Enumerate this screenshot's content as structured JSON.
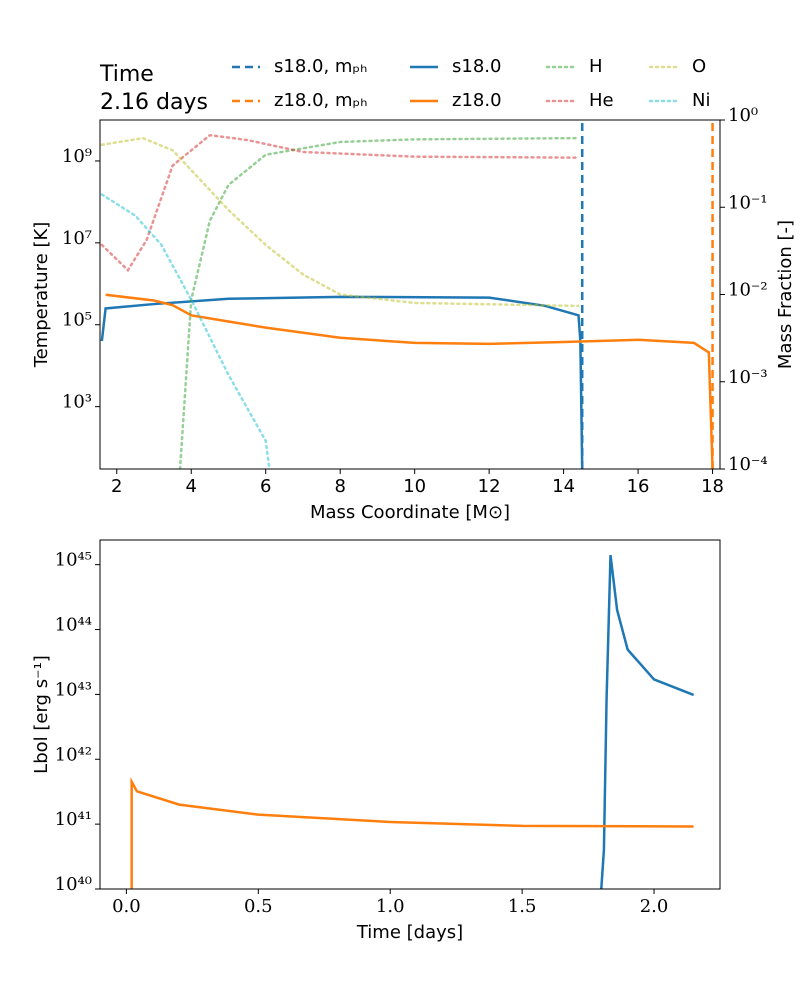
{
  "chart_data": [
    {
      "type": "line",
      "annotations": [
        "Time",
        "2.16 days"
      ],
      "xlabel": "Mass Coordinate [M⊙]",
      "ylabel": "Temperature [K]",
      "y2label": "Mass Fraction [-]",
      "xlim": [
        1.55,
        18.2
      ],
      "xticks": [
        2,
        4,
        6,
        8,
        10,
        12,
        14,
        16,
        18
      ],
      "ylim": [
        30,
        10000000000
      ],
      "ylog": true,
      "yticks": [
        {
          "value": 1000,
          "label": "10³"
        },
        {
          "value": 100000,
          "label": "10⁵"
        },
        {
          "value": 10000000,
          "label": "10⁷"
        },
        {
          "value": 1000000000,
          "label": "10⁹"
        }
      ],
      "y2lim": [
        0.0001,
        1
      ],
      "y2log": true,
      "y2ticks": [
        {
          "value": 0.0001,
          "label": "10⁻⁴"
        },
        {
          "value": 0.001,
          "label": "10⁻³"
        },
        {
          "value": 0.01,
          "label": "10⁻²"
        },
        {
          "value": 0.1,
          "label": "10⁻¹"
        },
        {
          "value": 1,
          "label": "10⁰"
        }
      ],
      "legend": true,
      "series": [
        {
          "name": "s18.0, mₚₕ",
          "color": "#1f77b4",
          "linestyle": "dashed",
          "x": [
            14.5,
            14.5
          ],
          "values": [
            30,
            10000000000
          ]
        },
        {
          "name": "z18.0, mₚₕ",
          "color": "#ff7f0e",
          "linestyle": "dashed",
          "x": [
            18.0,
            18.0
          ],
          "values": [
            30,
            10000000000
          ]
        },
        {
          "name": "s18.0",
          "color": "#1f77b4",
          "linestyle": "solid",
          "x": [
            1.6,
            1.7,
            3,
            5,
            8,
            12,
            13.5,
            14.4,
            14.45,
            14.5
          ],
          "values": [
            40000,
            250000,
            320000,
            430000,
            480000,
            460000,
            290000,
            170000,
            40000,
            30
          ]
        },
        {
          "name": "z18.0",
          "color": "#ff7f0e",
          "linestyle": "solid",
          "x": [
            1.7,
            3,
            3.5,
            4,
            5,
            6,
            8,
            10,
            12,
            14,
            16,
            17.5,
            17.9,
            18.0
          ],
          "values": [
            540000,
            390000,
            300000,
            170000,
            120000,
            85000,
            48000,
            36000,
            34000,
            38000,
            43000,
            36000,
            21000,
            30
          ]
        },
        {
          "name": "H",
          "color": "#2ca02c",
          "linestyle": "dotted",
          "axis": "y2",
          "x": [
            3.7,
            4,
            4.5,
            5,
            6,
            8,
            10,
            14.4
          ],
          "values": [
            0.0001,
            0.0087,
            0.07,
            0.18,
            0.4,
            0.56,
            0.6,
            0.62
          ]
        },
        {
          "name": "He",
          "color": "#d62728",
          "linestyle": "dotted",
          "axis": "y2",
          "x": [
            1.6,
            2.3,
            2.8,
            3.5,
            4.5,
            5.5,
            7,
            10,
            14.4
          ],
          "values": [
            0.037,
            0.019,
            0.042,
            0.3,
            0.67,
            0.59,
            0.43,
            0.38,
            0.37
          ]
        },
        {
          "name": "O",
          "color": "#bcbd22",
          "linestyle": "dotted",
          "axis": "y2",
          "x": [
            1.6,
            2.7,
            3.5,
            5,
            6,
            7,
            8,
            10,
            14.4
          ],
          "values": [
            0.52,
            0.62,
            0.45,
            0.093,
            0.037,
            0.017,
            0.01,
            0.008,
            0.0074
          ]
        },
        {
          "name": "Ni",
          "color": "#17becf",
          "linestyle": "dotted",
          "axis": "y2",
          "x": [
            1.6,
            2.5,
            3.2,
            4,
            5,
            6,
            6.1
          ],
          "values": [
            0.14,
            0.08,
            0.037,
            0.0087,
            0.0012,
            0.00021,
            0.0001
          ]
        }
      ]
    },
    {
      "type": "line",
      "xlabel": "Time [days]",
      "ylabel": "Lbol [erg s⁻¹]",
      "xlim": [
        -0.1,
        2.25
      ],
      "xticks": [
        {
          "value": 0,
          "label": "0.0"
        },
        {
          "value": 0.5,
          "label": "0.5"
        },
        {
          "value": 1,
          "label": "1.0"
        },
        {
          "value": 1.5,
          "label": "1.5"
        },
        {
          "value": 2,
          "label": "2.0"
        }
      ],
      "ylim": [
        1e+40,
        2.4e+45
      ],
      "ylog": true,
      "yticks": [
        {
          "value": 1e+40,
          "label": "10⁴⁰"
        },
        {
          "value": 1e+41,
          "label": "10⁴¹"
        },
        {
          "value": 1e+42,
          "label": "10⁴²"
        },
        {
          "value": 1e+43,
          "label": "10⁴³"
        },
        {
          "value": 1e+44,
          "label": "10⁴⁴"
        },
        {
          "value": 1e+45,
          "label": "10⁴⁵"
        }
      ],
      "series": [
        {
          "color": "#1f77b4",
          "linestyle": "solid",
          "x": [
            1.8,
            1.81,
            1.82,
            1.835,
            1.86,
            1.9,
            2.0,
            2.15
          ],
          "values": [
            1e+40,
            4e+40,
            8.3e+42,
            1.4e+45,
            2e+44,
            4.9e+43,
            1.7e+43,
            9.8e+42
          ]
        },
        {
          "color": "#ff7f0e",
          "linestyle": "solid",
          "x": [
            0.02,
            0.02,
            0.03,
            0.04,
            0.2,
            0.5,
            1.0,
            1.5,
            2.15
          ],
          "values": [
            1e+40,
            4.5e+41,
            3.8e+41,
            3.2e+41,
            2e+41,
            1.4e+41,
            1.08e+41,
            9.4e+40,
            9.2e+40
          ]
        }
      ]
    }
  ]
}
